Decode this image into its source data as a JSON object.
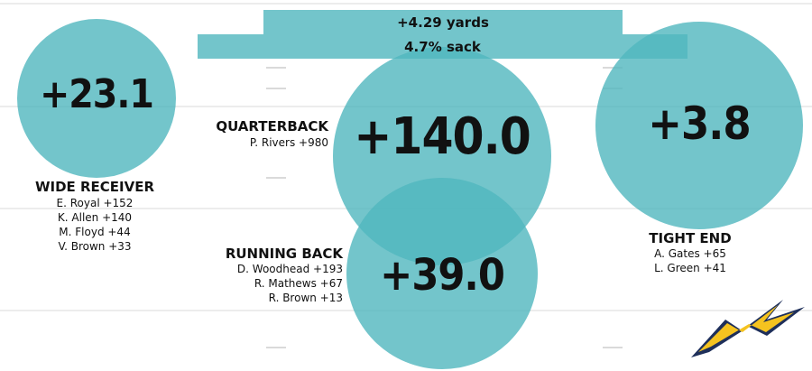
{
  "bars": [
    {
      "label": "+4.29 yards"
    },
    {
      "label": "4.7% sack"
    }
  ],
  "positions": {
    "wide_receiver": {
      "value": "+23.1",
      "title": "WIDE RECEIVER",
      "players": [
        "E. Royal +152",
        "K. Allen +140",
        "M. Floyd +44",
        "V. Brown +33"
      ]
    },
    "quarterback": {
      "value": "+140.0",
      "title": "QUARTERBACK",
      "players": [
        "P. Rivers +980"
      ]
    },
    "running_back": {
      "value": "+39.0",
      "title": "RUNNING BACK",
      "players": [
        "D. Woodhead +193",
        "R. Mathews +67",
        "R. Brown +13"
      ]
    },
    "tight_end": {
      "value": "+3.8",
      "title": "TIGHT END",
      "players": [
        "A. Gates +65",
        "L. Green +41"
      ]
    }
  },
  "colors": {
    "bubble": "#50b6be",
    "logo_yellow": "#f5c31f",
    "logo_navy": "#1e2f5a"
  },
  "logo": {
    "icon": "lightning-bolt-icon"
  }
}
